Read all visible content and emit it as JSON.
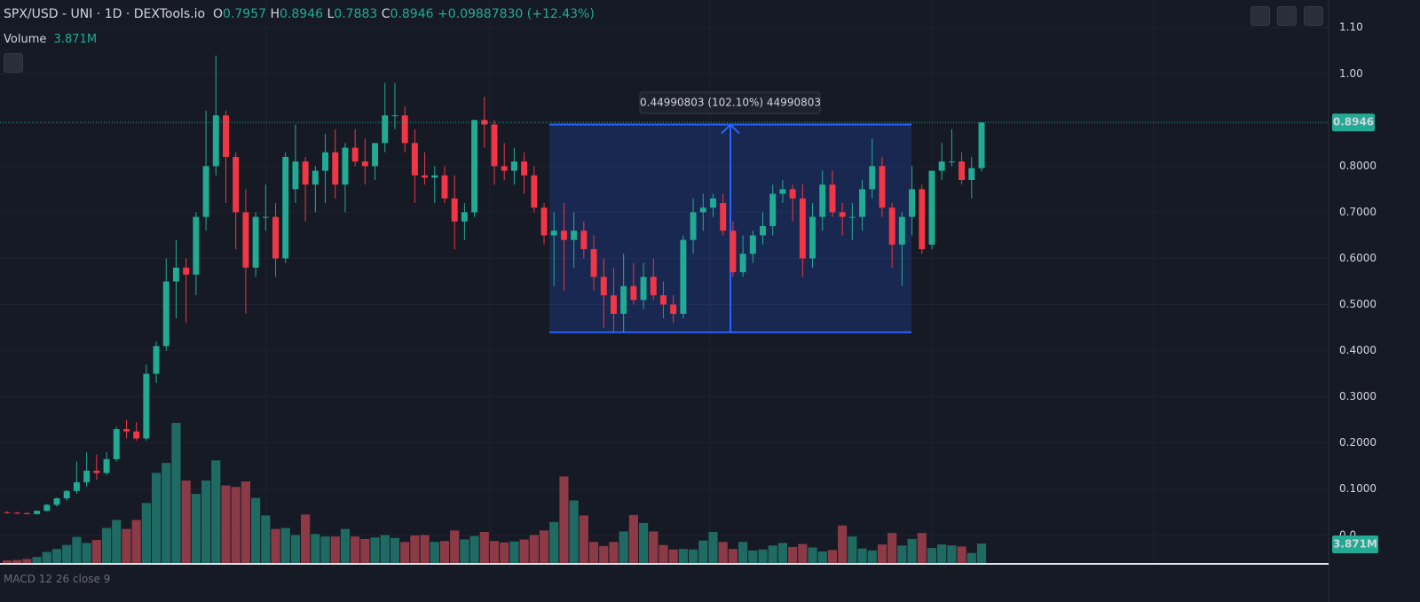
{
  "chart_data": {
    "type": "candlestick",
    "header": {
      "title": "SPX/USD - UNI · 1D · DEXTools.io",
      "o": "O",
      "h": "H",
      "l": "L",
      "c": "C",
      "change": "+0.09887830 (+12.43%)",
      "volume": "Volume",
      "indicator": "MACD 12 26 close 9"
    },
    "volume_label": "3.871M",
    "measure": {
      "label": "0.44990803 (102.10%) 44990803",
      "from": 0.4401,
      "to": 0.89
    },
    "up_color": "#22ab94",
    "down_color": "#f23645",
    "up_volume_color": "#1f6b63",
    "down_volume_color": "#8b3a46",
    "ylim": [
      -0.06,
      1.16
    ],
    "yticks": [
      {
        "value": 1.1,
        "label": "1.10"
      },
      {
        "value": 1.0,
        "label": "1.00"
      },
      {
        "value": 0.8,
        "label": "0.8000"
      },
      {
        "value": 0.7,
        "label": "0.7000"
      },
      {
        "value": 0.6,
        "label": "0.6000"
      },
      {
        "value": 0.5,
        "label": "0.5000"
      },
      {
        "value": 0.4,
        "label": "0.4000"
      },
      {
        "value": 0.3,
        "label": "0.3000"
      },
      {
        "value": 0.2,
        "label": "0.2000"
      },
      {
        "value": 0.1,
        "label": "0.1000"
      },
      {
        "value": 0,
        "label": "0.0"
      }
    ],
    "grid": true,
    "open": [
      0.05,
      0.049,
      0.048,
      0.046,
      0.053,
      0.066,
      0.08,
      0.096,
      0.115,
      0.14,
      0.135,
      0.165,
      0.23,
      0.225,
      0.21,
      0.35,
      0.41,
      0.55,
      0.58,
      0.565,
      0.69,
      0.8,
      0.91,
      0.82,
      0.7,
      0.58,
      0.69,
      0.69,
      0.6,
      0.75,
      0.81,
      0.76,
      0.79,
      0.83,
      0.76,
      0.84,
      0.81,
      0.8,
      0.85,
      0.91,
      0.91,
      0.85,
      0.78,
      0.775,
      0.78,
      0.73,
      0.68,
      0.7,
      0.9,
      0.89,
      0.8,
      0.79,
      0.81,
      0.78,
      0.71,
      0.65,
      0.66,
      0.64,
      0.66,
      0.62,
      0.56,
      0.52,
      0.48,
      0.54,
      0.51,
      0.56,
      0.52,
      0.5,
      0.48,
      0.64,
      0.7,
      0.71,
      0.72,
      0.66,
      0.57,
      0.61,
      0.65,
      0.67,
      0.74,
      0.75,
      0.73,
      0.6,
      0.69,
      0.76,
      0.7,
      0.69,
      0.69,
      0.75,
      0.8,
      0.71,
      0.63,
      0.69,
      0.75,
      0.63,
      0.79,
      0.81,
      0.81,
      0.77,
      0.7957
    ],
    "high": [
      0.052,
      0.051,
      0.05,
      0.054,
      0.068,
      0.082,
      0.098,
      0.16,
      0.18,
      0.175,
      0.18,
      0.235,
      0.25,
      0.245,
      0.37,
      0.42,
      0.6,
      0.64,
      0.6,
      0.7,
      0.92,
      1.04,
      0.92,
      0.83,
      0.75,
      0.7,
      0.76,
      0.72,
      0.83,
      0.89,
      0.82,
      0.8,
      0.87,
      0.88,
      0.85,
      0.88,
      0.86,
      0.85,
      0.98,
      0.98,
      0.93,
      0.88,
      0.83,
      0.8,
      0.8,
      0.78,
      0.72,
      0.9,
      0.95,
      0.9,
      0.85,
      0.84,
      0.83,
      0.8,
      0.72,
      0.7,
      0.72,
      0.7,
      0.68,
      0.65,
      0.6,
      0.58,
      0.61,
      0.59,
      0.59,
      0.6,
      0.55,
      0.52,
      0.65,
      0.73,
      0.74,
      0.74,
      0.74,
      0.68,
      0.65,
      0.66,
      0.7,
      0.76,
      0.77,
      0.76,
      0.76,
      0.72,
      0.79,
      0.79,
      0.72,
      0.72,
      0.77,
      0.86,
      0.82,
      0.72,
      0.7,
      0.8,
      0.76,
      0.79,
      0.85,
      0.88,
      0.83,
      0.82,
      0.8946
    ],
    "low": [
      0.047,
      0.046,
      0.045,
      0.045,
      0.051,
      0.062,
      0.075,
      0.09,
      0.105,
      0.12,
      0.13,
      0.16,
      0.21,
      0.205,
      0.205,
      0.33,
      0.4,
      0.47,
      0.46,
      0.52,
      0.66,
      0.78,
      0.72,
      0.62,
      0.48,
      0.56,
      0.66,
      0.56,
      0.59,
      0.72,
      0.68,
      0.7,
      0.72,
      0.73,
      0.7,
      0.8,
      0.76,
      0.77,
      0.83,
      0.88,
      0.83,
      0.72,
      0.76,
      0.72,
      0.72,
      0.62,
      0.64,
      0.69,
      0.84,
      0.76,
      0.77,
      0.76,
      0.74,
      0.7,
      0.63,
      0.54,
      0.53,
      0.58,
      0.6,
      0.53,
      0.45,
      0.44,
      0.44,
      0.5,
      0.49,
      0.51,
      0.47,
      0.46,
      0.47,
      0.61,
      0.66,
      0.69,
      0.65,
      0.56,
      0.56,
      0.59,
      0.63,
      0.65,
      0.72,
      0.68,
      0.56,
      0.58,
      0.66,
      0.69,
      0.65,
      0.64,
      0.66,
      0.73,
      0.69,
      0.58,
      0.54,
      0.65,
      0.61,
      0.62,
      0.77,
      0.8,
      0.76,
      0.73,
      0.7883
    ],
    "close": [
      0.049,
      0.048,
      0.046,
      0.053,
      0.066,
      0.08,
      0.096,
      0.115,
      0.14,
      0.135,
      0.165,
      0.23,
      0.225,
      0.21,
      0.35,
      0.41,
      0.55,
      0.58,
      0.565,
      0.69,
      0.8,
      0.91,
      0.82,
      0.7,
      0.58,
      0.69,
      0.69,
      0.6,
      0.82,
      0.81,
      0.76,
      0.79,
      0.83,
      0.76,
      0.84,
      0.81,
      0.8,
      0.85,
      0.91,
      0.91,
      0.85,
      0.78,
      0.775,
      0.78,
      0.73,
      0.68,
      0.7,
      0.9,
      0.89,
      0.8,
      0.79,
      0.81,
      0.78,
      0.71,
      0.65,
      0.66,
      0.64,
      0.66,
      0.62,
      0.56,
      0.52,
      0.48,
      0.54,
      0.51,
      0.56,
      0.52,
      0.5,
      0.48,
      0.64,
      0.7,
      0.71,
      0.73,
      0.66,
      0.57,
      0.61,
      0.65,
      0.67,
      0.74,
      0.75,
      0.73,
      0.6,
      0.69,
      0.76,
      0.7,
      0.69,
      0.69,
      0.75,
      0.8,
      0.71,
      0.63,
      0.69,
      0.75,
      0.62,
      0.79,
      0.81,
      0.81,
      0.77,
      0.7957,
      0.8946
    ],
    "volume": [
      0.5,
      0.6,
      0.8,
      1.2,
      2.2,
      2.8,
      3.6,
      5.2,
      4,
      4.6,
      7,
      8.6,
      6.8,
      8.6,
      12,
      18,
      20,
      28,
      16.5,
      13.8,
      16.5,
      20.5,
      15.5,
      15.2,
      16.3,
      13,
      9.5,
      6.8,
      7,
      5.6,
      9.7,
      5.8,
      5.3,
      5.3,
      6.8,
      5.3,
      4.8,
      5.1,
      5.6,
      5,
      4.2,
      5.5,
      5.6,
      4.2,
      4.4,
      6.5,
      4.7,
      5.4,
      6.2,
      4.4,
      4.1,
      4.3,
      4.7,
      5.6,
      6.5,
      8.2,
      17.3,
      12.5,
      9.5,
      4.2,
      3.4,
      4.2,
      6.3,
      9.6,
      8,
      6.3,
      3.6,
      2.7,
      2.8,
      2.7,
      4.5,
      6.2,
      4.2,
      2.8,
      4.2,
      2.5,
      2.7,
      3.5,
      4,
      3.2,
      3.8,
      3.1,
      2.3,
      2.6,
      7.5,
      5.3,
      2.9,
      2.5,
      3.7,
      6,
      3.5,
      4.8,
      6,
      3,
      3.7,
      3.5,
      3.3,
      2,
      3.871
    ]
  }
}
